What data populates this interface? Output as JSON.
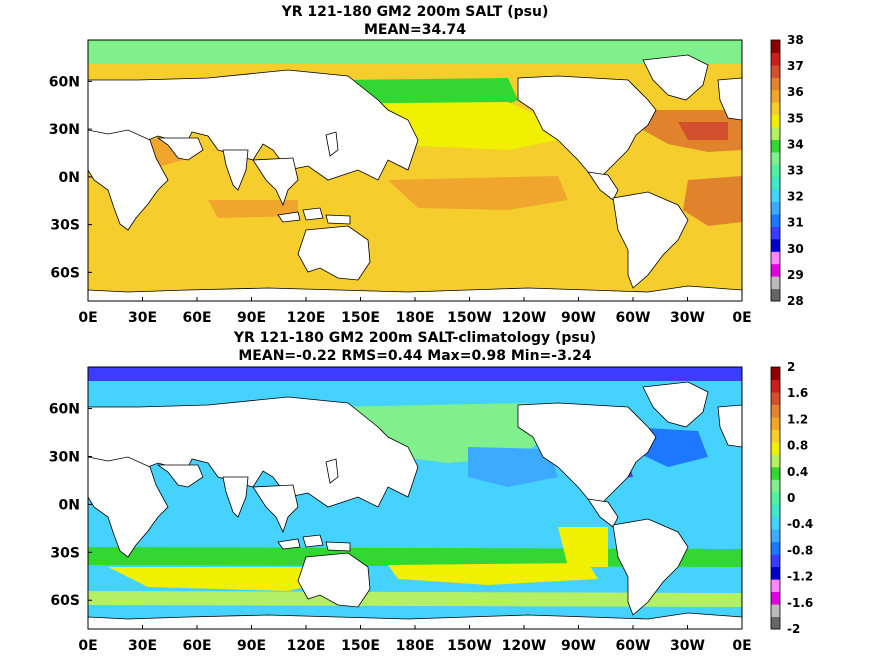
{
  "chart_data": [
    {
      "type": "heatmap",
      "title": "YR 121-180 GM2 200m SALT (psu)",
      "subtitle": "MEAN=34.74",
      "xlabel": "",
      "ylabel": "",
      "xticks": [
        "0E",
        "30E",
        "60E",
        "90E",
        "120E",
        "150E",
        "180E",
        "150W",
        "120W",
        "90W",
        "60W",
        "30W",
        "0E"
      ],
      "yticks": [
        "60N",
        "30N",
        "0N",
        "30S",
        "60S"
      ],
      "ytick_values": [
        60,
        30,
        0,
        -30,
        -60
      ],
      "xlim": [
        0,
        360
      ],
      "ylim": [
        -78,
        86
      ],
      "colorbar": {
        "ticks": [
          "38",
          "37",
          "36",
          "35",
          "34",
          "33",
          "32",
          "31",
          "30",
          "29",
          "28"
        ],
        "range": [
          28,
          38
        ],
        "levels": [
          28,
          28.5,
          29,
          29.5,
          30,
          30.5,
          31,
          31.5,
          32,
          32.5,
          33,
          33.5,
          34,
          34.5,
          35,
          35.5,
          36,
          36.5,
          37,
          37.5,
          38
        ],
        "colors": [
          "#666666",
          "#bbbbbb",
          "#e000e0",
          "#ff88ff",
          "#0000c8",
          "#3c3cff",
          "#1e78ff",
          "#3caaff",
          "#46d2ff",
          "#40e8c8",
          "#50f0a0",
          "#7ff08c",
          "#32d732",
          "#b4f064",
          "#f0f000",
          "#f5cd2d",
          "#f0a52d",
          "#e1822d",
          "#d2502d",
          "#c81e1e",
          "#8c0000"
        ]
      },
      "mean": 34.74
    },
    {
      "type": "heatmap",
      "title": "YR 121-180 GM2 200m SALT-climatology (psu)",
      "subtitle": "MEAN=-0.22   RMS=0.44   Max=0.98   Min=-3.24",
      "xlabel": "",
      "ylabel": "",
      "xticks": [
        "0E",
        "30E",
        "60E",
        "90E",
        "120E",
        "150E",
        "180E",
        "150W",
        "120W",
        "90W",
        "60W",
        "30W",
        "0E"
      ],
      "yticks": [
        "60N",
        "30N",
        "0N",
        "30S",
        "60S"
      ],
      "ytick_values": [
        60,
        30,
        0,
        -30,
        -60
      ],
      "xlim": [
        0,
        360
      ],
      "ylim": [
        -78,
        86
      ],
      "colorbar": {
        "ticks": [
          "2",
          "1.6",
          "1.2",
          "0.8",
          "0.4",
          "0",
          "-0.4",
          "-0.8",
          "-1.2",
          "-1.6",
          "-2"
        ],
        "range": [
          -2,
          2
        ],
        "levels": [
          -2,
          -1.8,
          -1.6,
          -1.4,
          -1.2,
          -1.0,
          -0.8,
          -0.6,
          -0.4,
          -0.2,
          0,
          0.2,
          0.4,
          0.6,
          0.8,
          1.0,
          1.2,
          1.4,
          1.6,
          1.8,
          2
        ],
        "colors": [
          "#666666",
          "#bbbbbb",
          "#e000e0",
          "#ff88ff",
          "#0000c8",
          "#3c3cff",
          "#1e78ff",
          "#3caaff",
          "#46d2ff",
          "#40e8c8",
          "#50f0a0",
          "#7ff08c",
          "#32d732",
          "#b4f064",
          "#f0f000",
          "#f5cd2d",
          "#f0a52d",
          "#e1822d",
          "#d2502d",
          "#c81e1e",
          "#8c0000"
        ]
      },
      "mean": -0.22,
      "rms": 0.44,
      "max": 0.98,
      "min": -3.24
    }
  ]
}
